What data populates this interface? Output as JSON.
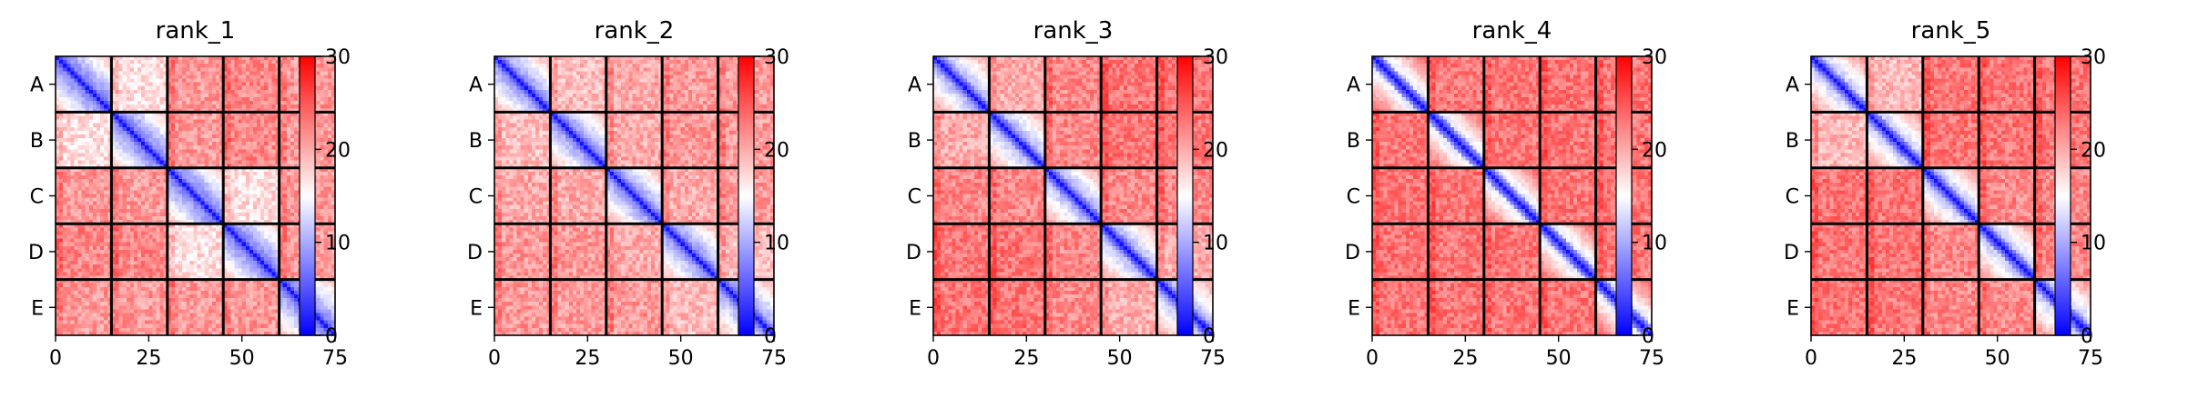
{
  "chart_data": [
    {
      "type": "heatmap",
      "title": "rank_1",
      "row_labels": [
        "A",
        "B",
        "C",
        "D",
        "E"
      ],
      "x_ticks": [
        0,
        25,
        50,
        75
      ],
      "xlim": [
        0,
        75
      ],
      "blocks_per_axis": 5,
      "block_size": 15,
      "colorbar": {
        "colormap": "bwr",
        "vmin": 0,
        "vmax": 30,
        "ticks": [
          0,
          10,
          20,
          30
        ]
      },
      "diagonal_value": 1,
      "within_block_base": 13,
      "within_block_slope": 0.9,
      "off_block_mean": [
        [
          13,
          17,
          21,
          22,
          21
        ],
        [
          17,
          13,
          21,
          22,
          21
        ],
        [
          21,
          21,
          13,
          17,
          21
        ],
        [
          22,
          22,
          17,
          13,
          21
        ],
        [
          21,
          21,
          21,
          21,
          13
        ]
      ]
    },
    {
      "type": "heatmap",
      "title": "rank_2",
      "row_labels": [
        "A",
        "B",
        "C",
        "D",
        "E"
      ],
      "x_ticks": [
        0,
        25,
        50,
        75
      ],
      "xlim": [
        0,
        75
      ],
      "blocks_per_axis": 5,
      "block_size": 15,
      "colorbar": {
        "colormap": "bwr",
        "vmin": 0,
        "vmax": 30,
        "ticks": [
          0,
          10,
          20,
          30
        ]
      },
      "diagonal_value": 1,
      "within_block_base": 14,
      "within_block_slope": 0.9,
      "off_block_mean": [
        [
          14,
          19,
          20,
          21,
          21
        ],
        [
          19,
          14,
          20,
          21,
          21
        ],
        [
          20,
          20,
          14,
          20,
          21
        ],
        [
          21,
          21,
          20,
          14,
          19
        ],
        [
          21,
          21,
          21,
          19,
          14
        ]
      ]
    },
    {
      "type": "heatmap",
      "title": "rank_3",
      "row_labels": [
        "A",
        "B",
        "C",
        "D",
        "E"
      ],
      "x_ticks": [
        0,
        25,
        50,
        75
      ],
      "xlim": [
        0,
        75
      ],
      "blocks_per_axis": 5,
      "block_size": 15,
      "colorbar": {
        "colormap": "bwr",
        "vmin": 0,
        "vmax": 30,
        "ticks": [
          0,
          10,
          20,
          30
        ]
      },
      "diagonal_value": 1,
      "within_block_base": 15,
      "within_block_slope": 0.9,
      "off_block_mean": [
        [
          15,
          20,
          22,
          23,
          23
        ],
        [
          20,
          15,
          22,
          23,
          23
        ],
        [
          22,
          22,
          15,
          22,
          22
        ],
        [
          23,
          23,
          22,
          15,
          20
        ],
        [
          23,
          23,
          22,
          20,
          15
        ]
      ]
    },
    {
      "type": "heatmap",
      "title": "rank_4",
      "row_labels": [
        "A",
        "B",
        "C",
        "D",
        "E"
      ],
      "x_ticks": [
        0,
        25,
        50,
        75
      ],
      "xlim": [
        0,
        75
      ],
      "blocks_per_axis": 5,
      "block_size": 15,
      "colorbar": {
        "colormap": "bwr",
        "vmin": 0,
        "vmax": 30,
        "ticks": [
          0,
          10,
          20,
          30
        ]
      },
      "diagonal_value": 1,
      "within_block_base": 18,
      "within_block_slope": 1.0,
      "off_block_mean": [
        [
          18,
          23,
          23,
          23,
          23
        ],
        [
          23,
          18,
          23,
          23,
          23
        ],
        [
          23,
          23,
          18,
          23,
          23
        ],
        [
          23,
          23,
          23,
          18,
          23
        ],
        [
          23,
          23,
          23,
          23,
          18
        ]
      ]
    },
    {
      "type": "heatmap",
      "title": "rank_5",
      "row_labels": [
        "A",
        "B",
        "C",
        "D",
        "E"
      ],
      "x_ticks": [
        0,
        25,
        50,
        75
      ],
      "xlim": [
        0,
        75
      ],
      "blocks_per_axis": 5,
      "block_size": 15,
      "colorbar": {
        "colormap": "bwr",
        "vmin": 0,
        "vmax": 30,
        "ticks": [
          0,
          10,
          20,
          30
        ]
      },
      "diagonal_value": 1,
      "within_block_base": 16,
      "within_block_slope": 0.9,
      "off_block_mean": [
        [
          16,
          19,
          23,
          23,
          23
        ],
        [
          19,
          16,
          23,
          23,
          23
        ],
        [
          23,
          23,
          16,
          22,
          22
        ],
        [
          23,
          23,
          22,
          16,
          22
        ],
        [
          23,
          23,
          22,
          22,
          16
        ]
      ]
    }
  ]
}
